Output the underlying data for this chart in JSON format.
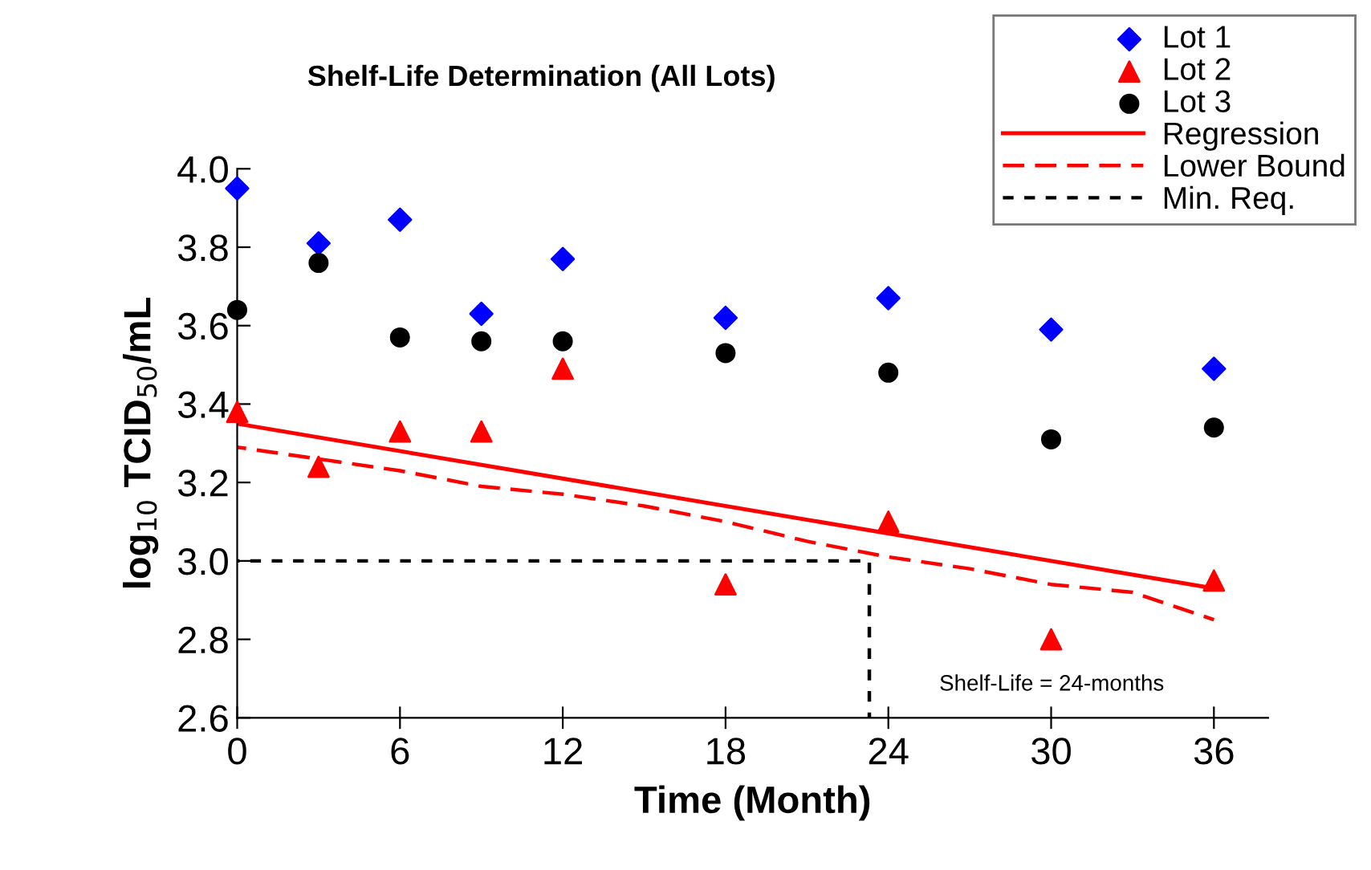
{
  "chart_data": {
    "type": "scatter",
    "title": "Shelf-Life Determination (All Lots)",
    "xlabel": "Time (Month)",
    "ylabel": "log$_{10}$ TCID$_{50}$/mL",
    "xlim": [
      0,
      38
    ],
    "xticks": [
      0,
      6,
      12,
      18,
      24,
      30,
      36
    ],
    "ylim": [
      2.6,
      4.0
    ],
    "yticks": [
      2.6,
      2.8,
      {
        "value": 3,
        "label": "3.0"
      },
      3.2,
      3.4,
      3.6,
      3.8,
      {
        "value": 4,
        "label": "4.0"
      }
    ],
    "grid": false,
    "legend": "top right",
    "series": [
      {
        "name": "Lot 1",
        "type": "scatter",
        "marker": "diamond",
        "color": "#0000ff",
        "x": [
          0,
          3,
          6,
          9,
          12,
          18,
          24,
          30,
          36
        ],
        "values": [
          3.95,
          3.81,
          3.87,
          3.63,
          3.77,
          3.62,
          3.67,
          3.59,
          3.49
        ]
      },
      {
        "name": "Lot 2",
        "type": "scatter",
        "marker": "triangle",
        "color": "#ff0000",
        "x": [
          0,
          3,
          6,
          9,
          12,
          18,
          24,
          30,
          36
        ],
        "values": [
          3.38,
          3.24,
          3.33,
          3.33,
          3.49,
          2.94,
          3.1,
          2.8,
          2.95
        ]
      },
      {
        "name": "Lot 3",
        "type": "scatter",
        "marker": "circle",
        "color": "#000000",
        "x": [
          0,
          3,
          6,
          9,
          12,
          18,
          24,
          30,
          36
        ],
        "values": [
          3.64,
          3.76,
          3.57,
          3.56,
          3.56,
          3.53,
          3.48,
          3.31,
          3.34
        ]
      },
      {
        "name": "Regression",
        "type": "line",
        "line_style": "solid",
        "color": "#ff0000",
        "x": [
          0,
          36
        ],
        "values": [
          3.35,
          2.93
        ]
      },
      {
        "name": "Lower Bound",
        "type": "line",
        "line_style": "dashed",
        "color": "#ff0000",
        "x": [
          0,
          3,
          6,
          9,
          12,
          15,
          18,
          21,
          24,
          27,
          30,
          33,
          36
        ],
        "values": [
          3.29,
          3.26,
          3.23,
          3.19,
          3.17,
          3.14,
          3.1,
          3.05,
          3.01,
          2.98,
          2.94,
          2.92,
          2.85
        ]
      },
      {
        "name": "Min. Req.",
        "type": "line",
        "line_style": "dotted",
        "color": "#000000",
        "x": [
          0,
          23.3,
          23.3
        ],
        "values": [
          3.0,
          3.0,
          2.6
        ]
      }
    ],
    "annotations": [
      "Shelf-Life = 24-months"
    ]
  }
}
